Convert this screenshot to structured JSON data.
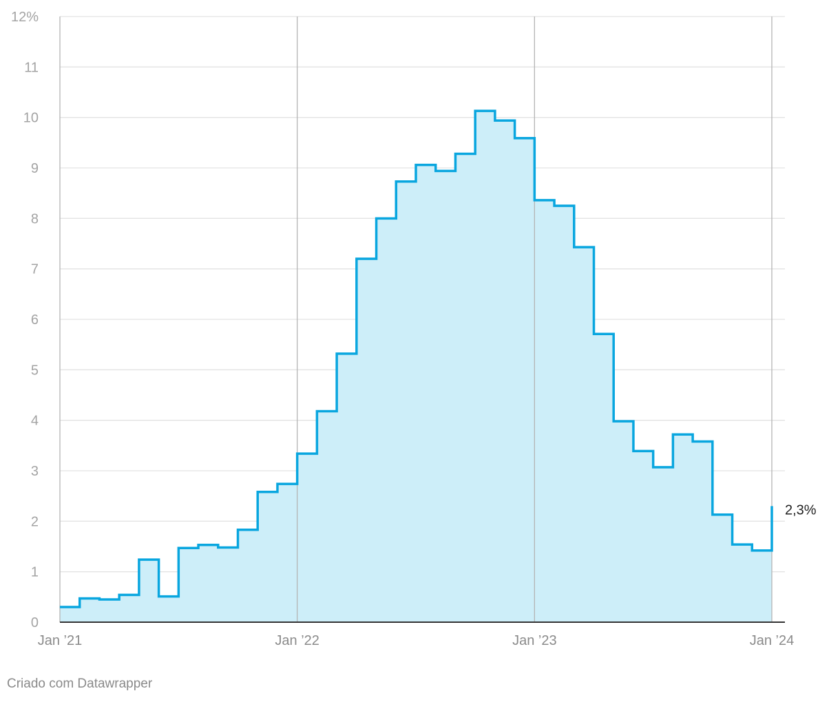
{
  "chart_data": {
    "type": "area",
    "step": true,
    "x_tick_labels": [
      "Jan ’21",
      "Jan ’22",
      "Jan ’23",
      "Jan ’24"
    ],
    "y_tick_labels": [
      "0",
      "1",
      "2",
      "3",
      "4",
      "5",
      "6",
      "7",
      "8",
      "9",
      "10",
      "11",
      "12%"
    ],
    "ylim": [
      0,
      12
    ],
    "xlim": [
      "2021-01",
      "2024-01"
    ],
    "grid": true,
    "x": [
      "2021-01",
      "2021-02",
      "2021-03",
      "2021-04",
      "2021-05",
      "2021-06",
      "2021-07",
      "2021-08",
      "2021-09",
      "2021-10",
      "2021-11",
      "2021-12",
      "2022-01",
      "2022-02",
      "2022-03",
      "2022-04",
      "2022-05",
      "2022-06",
      "2022-07",
      "2022-08",
      "2022-09",
      "2022-10",
      "2022-11",
      "2022-12",
      "2023-01",
      "2023-02",
      "2023-03",
      "2023-04",
      "2023-05",
      "2023-06",
      "2023-07",
      "2023-08",
      "2023-09",
      "2023-10",
      "2023-11",
      "2023-12",
      "2024-01"
    ],
    "values": [
      0.3,
      0.47,
      0.45,
      0.54,
      1.24,
      0.51,
      1.47,
      1.53,
      1.48,
      1.83,
      2.58,
      2.74,
      3.34,
      4.18,
      5.32,
      7.2,
      8.0,
      8.73,
      9.06,
      8.94,
      9.28,
      10.13,
      9.94,
      9.59,
      8.36,
      8.25,
      7.43,
      5.71,
      3.98,
      3.39,
      3.07,
      3.72,
      3.58,
      2.13,
      1.54,
      1.42,
      2.3
    ],
    "end_label": "2,3%",
    "colors": {
      "line": "#09a6df",
      "fill": "#cdeef9",
      "grid": "#e3e3e3",
      "vgrid": "#b4b4b4",
      "axis": "#333333"
    }
  },
  "footer": {
    "credit": "Criado com Datawrapper"
  }
}
